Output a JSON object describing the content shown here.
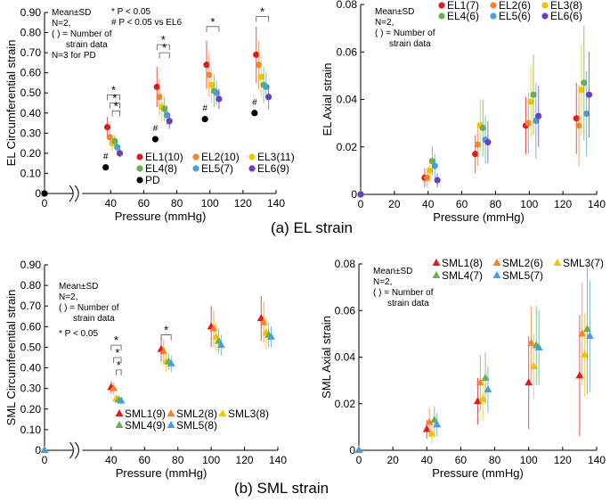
{
  "captions": {
    "a": "(a) EL strain",
    "b": "(b) SML strain"
  },
  "chart_data": [
    {
      "id": "el_circ",
      "type": "scatter",
      "ylabel": "EL Circumferential strain",
      "xlabel": "Pressure (mmHg)",
      "xlim": [
        0,
        140
      ],
      "xticks": [
        "0",
        "40",
        "60",
        "80",
        "100",
        "120",
        "140"
      ],
      "ylim": [
        0,
        0.9
      ],
      "yticks": [
        "0",
        "0.10",
        "0.20",
        "0.30",
        "0.40",
        "0.50",
        "0.60",
        "0.70",
        "0.80",
        "0.90"
      ],
      "axis_break": true,
      "notes": [
        "Mean±SD",
        "N=2,",
        "( ) = Number of",
        "strain data",
        "N=3 for PD"
      ],
      "sig_notes": [
        "* P < 0.05",
        "# P < 0.05 vs EL6"
      ],
      "marker": "circle",
      "series": [
        {
          "name": "EL1(10)",
          "color": "#e31a1c",
          "x": [
            0,
            38,
            68,
            98,
            128
          ],
          "y": [
            0,
            0.33,
            0.53,
            0.64,
            0.69
          ],
          "err": [
            0,
            0.05,
            0.1,
            0.12,
            0.14
          ]
        },
        {
          "name": "EL2(10)",
          "color": "#f58231",
          "x": [
            0,
            39.5,
            69.5,
            99.5,
            129.5
          ],
          "y": [
            0,
            0.28,
            0.48,
            0.59,
            0.64
          ],
          "err": [
            0,
            0.04,
            0.09,
            0.11,
            0.12
          ]
        },
        {
          "name": "EL3(11)",
          "color": "#f5c400",
          "x": [
            0,
            41,
            71,
            101,
            131
          ],
          "y": [
            0,
            0.25,
            0.43,
            0.54,
            0.58
          ],
          "err": [
            0,
            0.04,
            0.07,
            0.09,
            0.1
          ]
        },
        {
          "name": "EL4(8)",
          "color": "#6ab04c",
          "x": [
            0,
            42.5,
            72.5,
            102.5,
            132.5
          ],
          "y": [
            0,
            0.26,
            0.42,
            0.51,
            0.54
          ],
          "err": [
            0,
            0.03,
            0.06,
            0.08,
            0.09
          ]
        },
        {
          "name": "EL5(7)",
          "color": "#4a9fd8",
          "x": [
            0,
            44,
            74,
            104,
            134
          ],
          "y": [
            0,
            0.23,
            0.39,
            0.5,
            0.53
          ],
          "err": [
            0,
            0.03,
            0.05,
            0.06,
            0.07
          ]
        },
        {
          "name": "EL6(9)",
          "color": "#6a3fc4",
          "x": [
            0,
            45.5,
            75.5,
            105.5,
            135.5
          ],
          "y": [
            0,
            0.2,
            0.36,
            0.47,
            0.48
          ],
          "err": [
            0,
            0.02,
            0.04,
            0.05,
            0.06
          ]
        },
        {
          "name": "PD",
          "color": "#000000",
          "x": [
            0,
            37,
            67,
            97,
            127
          ],
          "y": [
            0,
            0.13,
            0.27,
            0.37,
            0.4
          ],
          "err": [
            0,
            0,
            0,
            0,
            0
          ]
        }
      ],
      "legend": [
        [
          "EL1(10)",
          "EL2(10)",
          "EL3(11)"
        ],
        [
          "EL4(8)",
          "EL5(7)",
          "EL6(9)"
        ],
        [
          "PD"
        ]
      ],
      "brackets": [
        {
          "x": [
            38,
            45.5
          ],
          "y": 0.49,
          "label": "*"
        },
        {
          "x": [
            39.5,
            45.5
          ],
          "y": 0.45,
          "label": "*"
        },
        {
          "x": [
            41,
            45.5
          ],
          "y": 0.41,
          "label": "*"
        },
        {
          "x": [
            68,
            75.5
          ],
          "y": 0.74,
          "label": "*"
        },
        {
          "x": [
            69.5,
            75.5
          ],
          "y": 0.7,
          "label": "*"
        },
        {
          "x": [
            98,
            105.5
          ],
          "y": 0.83,
          "label": "*"
        },
        {
          "x": [
            128,
            135.5
          ],
          "y": 0.88,
          "label": "*"
        }
      ],
      "hash_marks": [
        {
          "x": 37,
          "y": 0.17,
          "label": "#"
        },
        {
          "x": 67,
          "y": 0.31,
          "label": "#"
        },
        {
          "x": 97,
          "y": 0.41,
          "label": "#"
        },
        {
          "x": 127,
          "y": 0.44,
          "label": "#"
        }
      ]
    },
    {
      "id": "el_axial",
      "type": "scatter",
      "ylabel": "EL Axial strain",
      "xlabel": "Pressure (mmHg)",
      "xlim": [
        0,
        140
      ],
      "xticks": [
        "0",
        "20",
        "40",
        "60",
        "80",
        "100",
        "120",
        "140"
      ],
      "ylim": [
        0,
        0.08
      ],
      "yticks": [
        "0",
        "0.02",
        "0.04",
        "0.06",
        "0.08"
      ],
      "axis_break": false,
      "notes": [
        "Mean±SD",
        "N=2,",
        "( ) = Number of",
        "strain data"
      ],
      "sig_notes": [],
      "marker": "circle",
      "series": [
        {
          "name": "EL1(7)",
          "color": "#e31a1c",
          "x": [
            0,
            38,
            68,
            98,
            128
          ],
          "y": [
            0,
            0.007,
            0.017,
            0.029,
            0.032
          ],
          "err": [
            0,
            0.004,
            0.008,
            0.012,
            0.015
          ]
        },
        {
          "name": "EL2(6)",
          "color": "#f58231",
          "x": [
            0,
            39.5,
            69.5,
            99.5,
            129.5
          ],
          "y": [
            0,
            0.007,
            0.021,
            0.03,
            0.029
          ],
          "err": [
            0,
            0.004,
            0.009,
            0.013,
            0.017
          ]
        },
        {
          "name": "EL3(8)",
          "color": "#f5c400",
          "x": [
            0,
            41,
            71,
            101,
            131
          ],
          "y": [
            0,
            0.01,
            0.029,
            0.039,
            0.044
          ],
          "err": [
            0,
            0.005,
            0.011,
            0.015,
            0.019
          ]
        },
        {
          "name": "EL4(6)",
          "color": "#6ab04c",
          "x": [
            0,
            42.5,
            72.5,
            102.5,
            132.5
          ],
          "y": [
            0,
            0.014,
            0.028,
            0.042,
            0.047
          ],
          "err": [
            0,
            0.006,
            0.012,
            0.017,
            0.024
          ]
        },
        {
          "name": "EL5(6)",
          "color": "#4a9fd8",
          "x": [
            0,
            44,
            74,
            104,
            134
          ],
          "y": [
            0,
            0.012,
            0.023,
            0.031,
            0.034
          ],
          "err": [
            0,
            0.005,
            0.01,
            0.016,
            0.018
          ]
        },
        {
          "name": "EL6(6)",
          "color": "#6a3fc4",
          "x": [
            0,
            45.5,
            75.5,
            105.5,
            135.5
          ],
          "y": [
            0,
            0.006,
            0.022,
            0.033,
            0.042
          ],
          "err": [
            0,
            0.003,
            0.009,
            0.013,
            0.018
          ]
        }
      ],
      "legend": [
        [
          "EL1(7)",
          "EL2(6)",
          "EL3(8)"
        ],
        [
          "EL4(6)",
          "EL5(6)",
          "EL6(6)"
        ]
      ],
      "brackets": [],
      "hash_marks": []
    },
    {
      "id": "sml_circ",
      "type": "scatter",
      "ylabel": "SML Circumferential strain",
      "xlabel": "Pressure (mmHg)",
      "xlim": [
        0,
        140
      ],
      "xticks": [
        "0",
        "40",
        "60",
        "80",
        "100",
        "120",
        "140"
      ],
      "ylim": [
        0,
        0.9
      ],
      "yticks": [
        "0",
        "0.10",
        "0.20",
        "0.30",
        "0.40",
        "0.50",
        "0.60",
        "0.70",
        "0.80",
        "0.90"
      ],
      "axis_break": true,
      "notes": [
        "Mean±SD",
        "N=2,",
        "( ) = Number of",
        "strain data"
      ],
      "sig_notes": [
        "* P < 0.05"
      ],
      "marker": "triangle",
      "series": [
        {
          "name": "SML1(9)",
          "color": "#e31a1c",
          "x": [
            0,
            40,
            70,
            100,
            130
          ],
          "y": [
            0,
            0.305,
            0.49,
            0.6,
            0.64
          ],
          "err": [
            0,
            0.03,
            0.06,
            0.1,
            0.11
          ]
        },
        {
          "name": "SML2(8)",
          "color": "#f58231",
          "x": [
            0,
            41.5,
            71.5,
            101.5,
            131.5
          ],
          "y": [
            0,
            0.3,
            0.48,
            0.59,
            0.62
          ],
          "err": [
            0,
            0.03,
            0.06,
            0.09,
            0.1
          ]
        },
        {
          "name": "SML3(8)",
          "color": "#f5c400",
          "x": [
            0,
            43,
            73,
            103,
            133
          ],
          "y": [
            0,
            0.25,
            0.43,
            0.55,
            0.57
          ],
          "err": [
            0,
            0.02,
            0.05,
            0.07,
            0.08
          ]
        },
        {
          "name": "SML4(9)",
          "color": "#6ab04c",
          "x": [
            0,
            44.5,
            74.5,
            104.5,
            134.5
          ],
          "y": [
            0,
            0.245,
            0.43,
            0.53,
            0.56
          ],
          "err": [
            0,
            0.02,
            0.04,
            0.06,
            0.06
          ]
        },
        {
          "name": "SML5(8)",
          "color": "#4a9fd8",
          "x": [
            0,
            46,
            76,
            106,
            136
          ],
          "y": [
            0,
            0.24,
            0.42,
            0.51,
            0.55
          ],
          "err": [
            0,
            0.02,
            0.04,
            0.05,
            0.05
          ]
        }
      ],
      "legend": [
        [
          "SML1(9)",
          "SML2(8)",
          "SML3(8)"
        ],
        [
          "SML4(9)",
          "SML5(8)"
        ]
      ],
      "brackets": [
        {
          "x": [
            40,
            46
          ],
          "y": 0.51,
          "label": "*"
        },
        {
          "x": [
            41.5,
            46
          ],
          "y": 0.45,
          "label": "*"
        },
        {
          "x": [
            43,
            46
          ],
          "y": 0.39,
          "label": "*"
        },
        {
          "x": [
            70,
            76
          ],
          "y": 0.56,
          "label": "*"
        }
      ],
      "hash_marks": []
    },
    {
      "id": "sml_axial",
      "type": "scatter",
      "ylabel": "SML Axial strain",
      "xlabel": "Pressure (mmHg)",
      "xlim": [
        0,
        140
      ],
      "xticks": [
        "0",
        "20",
        "40",
        "60",
        "80",
        "100",
        "120",
        "140"
      ],
      "ylim": [
        0,
        0.08
      ],
      "yticks": [
        "0",
        "0.02",
        "0.04",
        "0.06",
        "0.08"
      ],
      "axis_break": false,
      "notes": [
        "Mean±SD",
        "N=2,",
        "( ) = Number of",
        "strain data"
      ],
      "sig_notes": [],
      "marker": "triangle",
      "series": [
        {
          "name": "SML1(8)",
          "color": "#e31a1c",
          "x": [
            0,
            40,
            70,
            100,
            130
          ],
          "y": [
            0,
            0.009,
            0.021,
            0.029,
            0.032
          ],
          "err": [
            0,
            0.004,
            0.01,
            0.02,
            0.026
          ]
        },
        {
          "name": "SML2(6)",
          "color": "#f58231",
          "x": [
            0,
            41.5,
            71.5,
            101.5,
            131.5
          ],
          "y": [
            0,
            0.012,
            0.029,
            0.046,
            0.05
          ],
          "err": [
            0,
            0.006,
            0.012,
            0.016,
            0.022
          ]
        },
        {
          "name": "SML3(7)",
          "color": "#f5c400",
          "x": [
            0,
            43,
            73,
            103,
            133
          ],
          "y": [
            0,
            0.007,
            0.022,
            0.036,
            0.041
          ],
          "err": [
            0,
            0.004,
            0.009,
            0.014,
            0.018
          ]
        },
        {
          "name": "SML4(7)",
          "color": "#6ab04c",
          "x": [
            0,
            44.5,
            74.5,
            104.5,
            134.5
          ],
          "y": [
            0,
            0.013,
            0.031,
            0.045,
            0.052
          ],
          "err": [
            0,
            0.006,
            0.011,
            0.017,
            0.028
          ]
        },
        {
          "name": "SML5(7)",
          "color": "#4a9fd8",
          "x": [
            0,
            46,
            76,
            106,
            136
          ],
          "y": [
            0,
            0.011,
            0.026,
            0.044,
            0.049
          ],
          "err": [
            0,
            0.005,
            0.01,
            0.016,
            0.024
          ]
        }
      ],
      "legend": [
        [
          "SML1(8)",
          "SML2(6)",
          "SML3(7)"
        ],
        [
          "SML4(7)",
          "SML5(7)"
        ]
      ],
      "brackets": [],
      "hash_marks": []
    }
  ]
}
